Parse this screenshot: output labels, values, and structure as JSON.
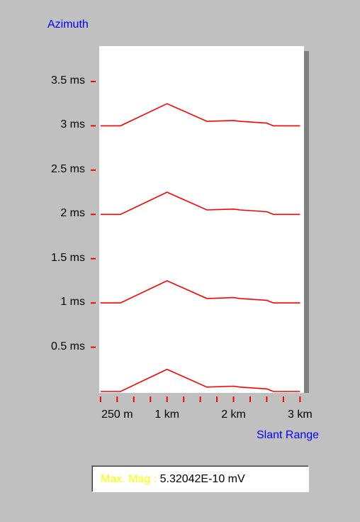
{
  "chart_data": {
    "type": "line",
    "y_axis_title": "Azimuth",
    "x_axis_title": "Slant Range",
    "y_ticks": [
      {
        "value": 0.5,
        "label": "0.5 ms"
      },
      {
        "value": 1.0,
        "label": "1 ms"
      },
      {
        "value": 1.5,
        "label": "1.5 ms"
      },
      {
        "value": 2.0,
        "label": "2 ms"
      },
      {
        "value": 2.5,
        "label": "2.5 ms"
      },
      {
        "value": 3.0,
        "label": "3 ms"
      },
      {
        "value": 3.5,
        "label": "3.5 ms"
      }
    ],
    "ylim": [
      0,
      3.9
    ],
    "x_ticks": [
      {
        "value": 250,
        "label": "250 m"
      },
      {
        "value": 1000,
        "label": "1 km"
      },
      {
        "value": 2000,
        "label": "2 km"
      },
      {
        "value": 3000,
        "label": "3 km"
      }
    ],
    "x_minor_ticks": [
      0,
      250,
      500,
      750,
      1000,
      1250,
      1500,
      1750,
      2000,
      2250,
      2500,
      2750,
      3000
    ],
    "xlim": [
      -20,
      3060
    ],
    "trace_shape": {
      "x": [
        0,
        300,
        1000,
        1600,
        2000,
        2100,
        2500,
        2600,
        3000
      ],
      "y": [
        0.0,
        0.0,
        0.25,
        0.05,
        0.06,
        0.05,
        0.03,
        0.0,
        0.0
      ]
    },
    "trace_offsets": [
      0.0,
      1.0,
      2.0,
      3.0
    ],
    "trace_color": "#ff0000",
    "tick_color": "#ff0000"
  },
  "readout": {
    "label": "Max. Mag :",
    "value": "5.32042E-10 mV",
    "label_color": "#ffff00"
  }
}
